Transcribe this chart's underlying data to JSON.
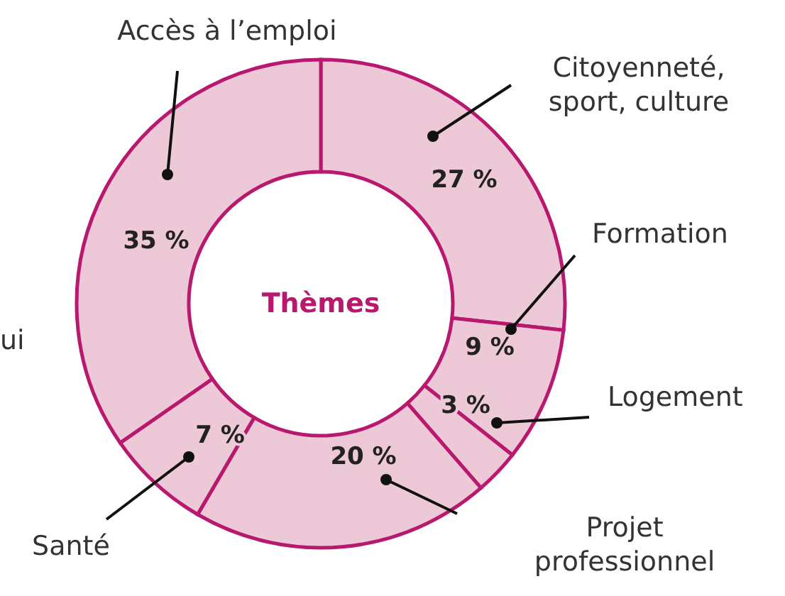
{
  "chart_data": {
    "type": "donut",
    "title": "Thèmes",
    "categories": [
      "Citoyenneté, sport, culture",
      "Formation",
      "Logement",
      "Projet professionnel",
      "Santé",
      "Accès à l’emploi"
    ],
    "values": [
      27,
      9,
      3,
      20,
      7,
      35
    ],
    "value_labels": [
      "27 %",
      "9 %",
      "3 %",
      "20 %",
      "7 %",
      "35 %"
    ],
    "colors": [
      "#edc9d7",
      "#edc9d7",
      "#edc9d7",
      "#edc9d7",
      "#edc9d7",
      "#edc9d7"
    ],
    "annotations": [
      "ui"
    ]
  }
}
